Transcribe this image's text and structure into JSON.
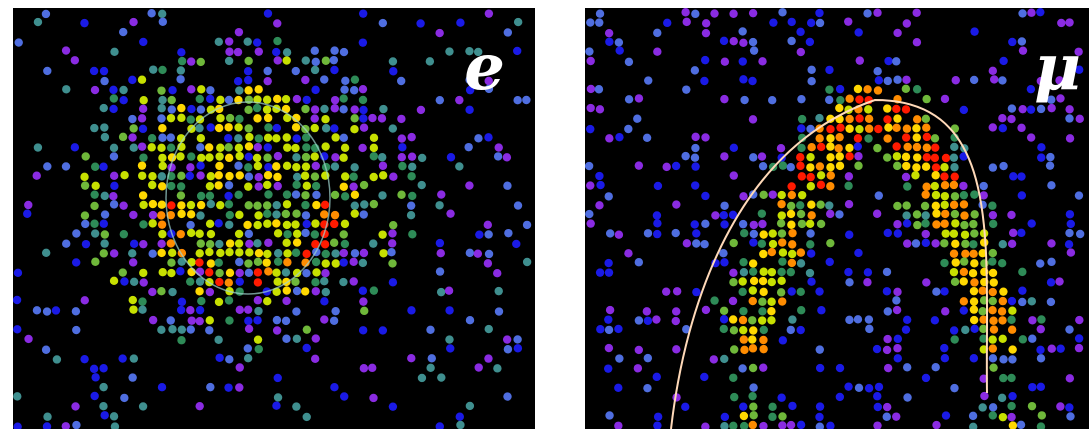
{
  "panels": [
    {
      "id": "electron",
      "label": "e",
      "ring_shape": "diffuse-disk",
      "ring_fit_color": "#9fd6d0"
    },
    {
      "id": "muon",
      "label": "μ",
      "ring_shape": "sharp-arc",
      "ring_fit_color": "#ffd9b8"
    }
  ],
  "colors": {
    "background": "#000000",
    "hit_scale": [
      "#1a1ae6",
      "#4f6ee0",
      "#8a2be2",
      "#3f8f8f",
      "#2e8b57",
      "#6fb83a",
      "#c7e000",
      "#ffd800",
      "#ff8c00",
      "#ff1a00"
    ]
  }
}
